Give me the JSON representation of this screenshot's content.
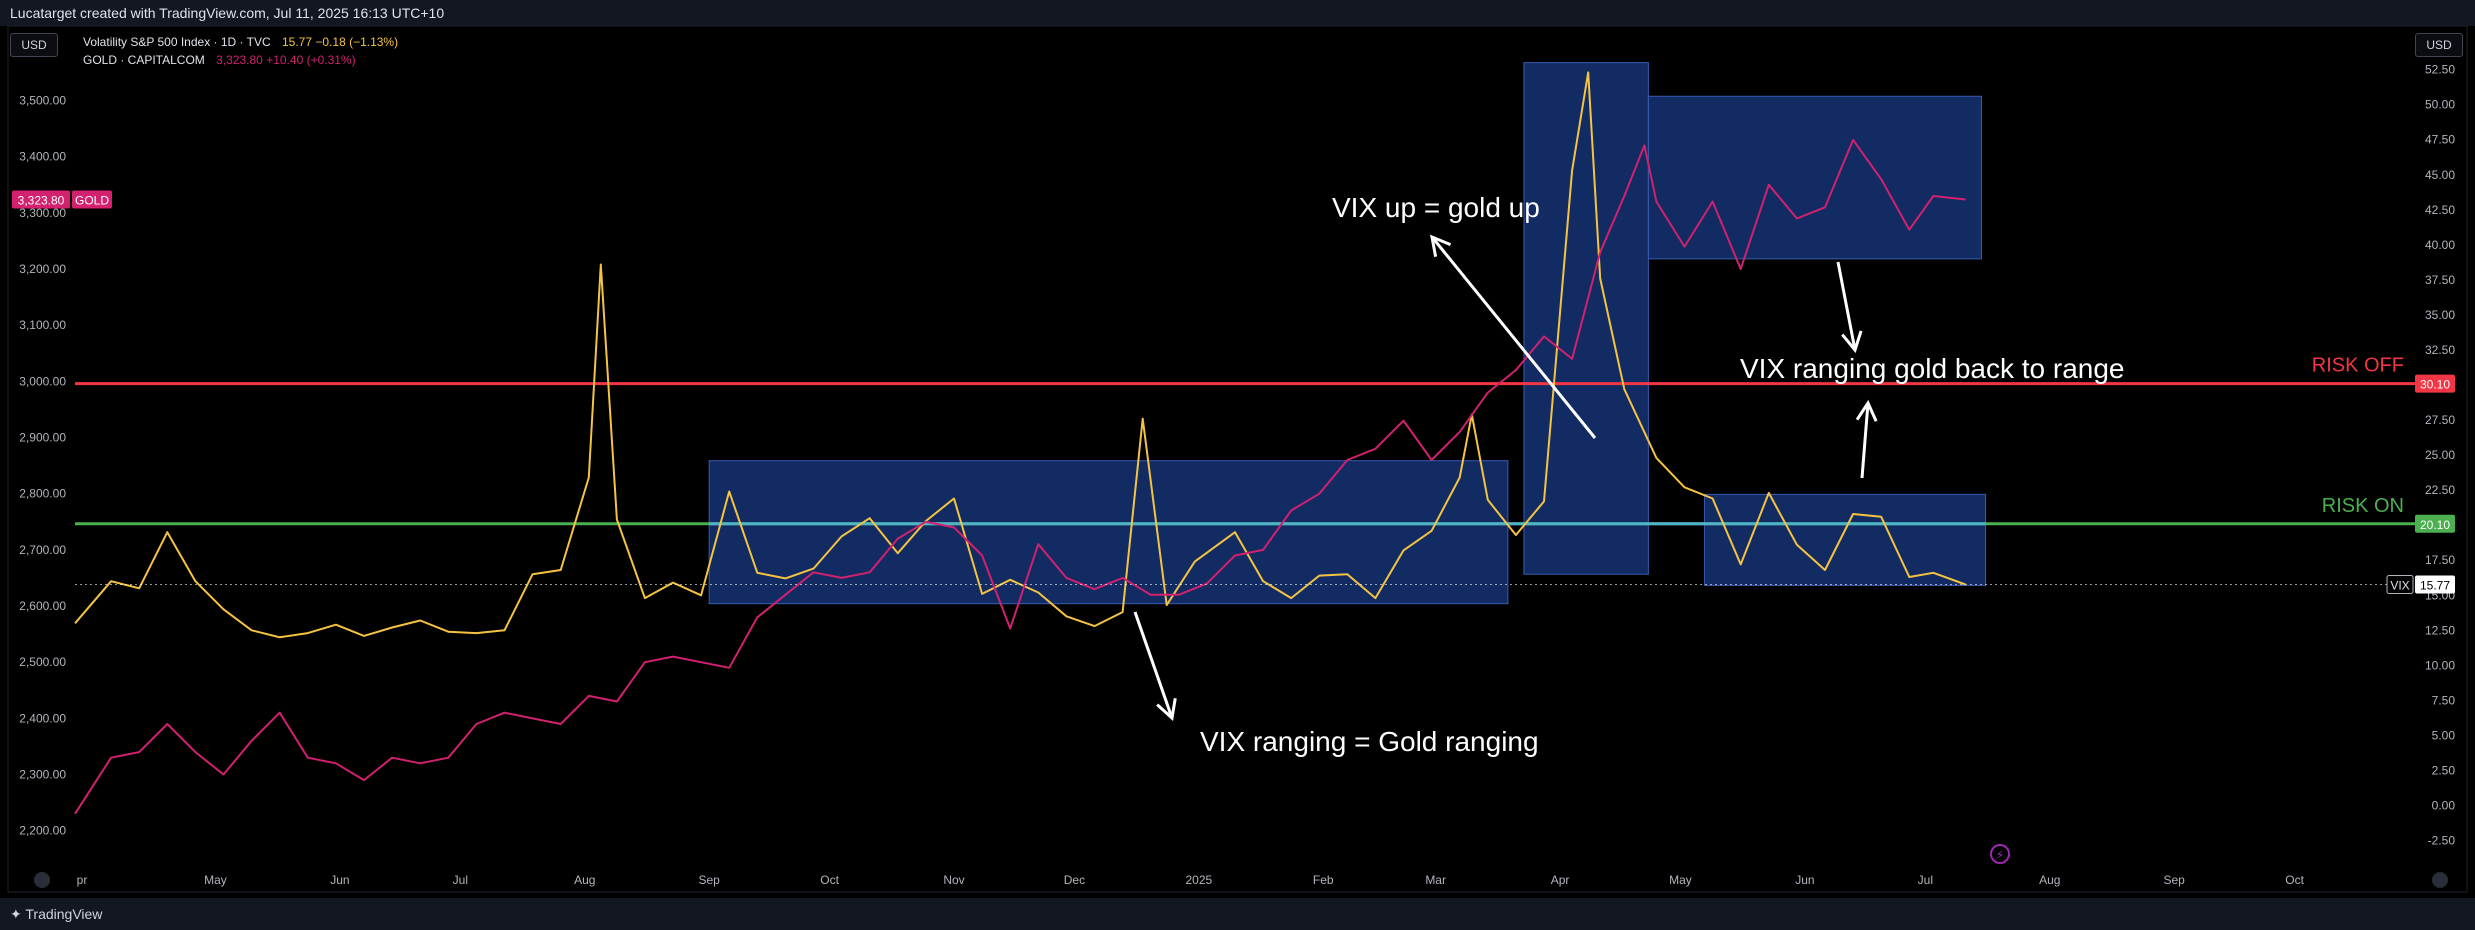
{
  "header": {
    "attribution": "Lucatarget created with TradingView.com, Jul 11, 2025 16:13 UTC+10"
  },
  "footer": {
    "brand": "TradingView"
  },
  "currency_left": "USD",
  "currency_right": "USD",
  "legend": [
    {
      "name": "Volatility S&P 500 Index · 1D · TVC",
      "last": "15.77",
      "change": "−0.18 (−1.13%)",
      "color": "#f5c342"
    },
    {
      "name": "GOLD · CAPITALCOM",
      "last": "3,323.80",
      "change": "+10.40 (+0.31%)",
      "color": "#d1216f"
    }
  ],
  "colors": {
    "vix": "#f5c342",
    "gold": "#d1216f",
    "risk_off": "#f23645",
    "risk_on": "#4caf50",
    "cyan": "#4fb3c9",
    "box_fill": "#14306e",
    "box_stroke": "#3a5bb0"
  },
  "chart_data": {
    "type": "line",
    "x_start": "2024-03-27",
    "x_end": "2025-10-31",
    "x_tick_labels": [
      "pr",
      "May",
      "Jun",
      "Jul",
      "Aug",
      "Sep",
      "Oct",
      "Nov",
      "Dec",
      "2025",
      "Feb",
      "Mar",
      "Apr",
      "May",
      "Jun",
      "Jul",
      "Aug",
      "Sep",
      "Oct"
    ],
    "left_axis": {
      "label": "GOLD",
      "ylim": [
        2130,
        3590
      ],
      "ticks": [
        "3,500.00",
        "3,400.00",
        "3,300.00",
        "3,200.00",
        "3,100.00",
        "3,000.00",
        "2,900.00",
        "2,800.00",
        "2,700.00",
        "2,600.00",
        "2,500.00",
        "2,400.00",
        "2,300.00",
        "2,200.00"
      ]
    },
    "right_axis": {
      "label": "VIX",
      "ylim": [
        -4.6,
        53.9
      ],
      "ticks": [
        "52.50",
        "50.00",
        "47.50",
        "45.00",
        "42.50",
        "40.00",
        "37.50",
        "35.00",
        "32.50",
        "30.00",
        "27.50",
        "25.00",
        "22.50",
        "20.00",
        "17.50",
        "15.00",
        "12.50",
        "10.00",
        "7.50",
        "5.00",
        "2.50",
        "0.00",
        "-2.50"
      ]
    },
    "series": [
      {
        "name": "Volatility S&P 500 Index",
        "axis": "right",
        "color": "#f5c342",
        "points": [
          [
            "2024-03-27",
            13.0
          ],
          [
            "2024-04-05",
            16.0
          ],
          [
            "2024-04-12",
            15.5
          ],
          [
            "2024-04-19",
            19.5
          ],
          [
            "2024-04-26",
            16.0
          ],
          [
            "2024-05-03",
            14.0
          ],
          [
            "2024-05-10",
            12.5
          ],
          [
            "2024-05-17",
            12.0
          ],
          [
            "2024-05-24",
            12.3
          ],
          [
            "2024-05-31",
            12.9
          ],
          [
            "2024-06-07",
            12.1
          ],
          [
            "2024-06-14",
            12.7
          ],
          [
            "2024-06-21",
            13.2
          ],
          [
            "2024-06-28",
            12.4
          ],
          [
            "2024-07-05",
            12.3
          ],
          [
            "2024-07-12",
            12.5
          ],
          [
            "2024-07-19",
            16.5
          ],
          [
            "2024-07-26",
            16.8
          ],
          [
            "2024-08-02",
            23.4
          ],
          [
            "2024-08-05",
            38.6
          ],
          [
            "2024-08-09",
            20.4
          ],
          [
            "2024-08-16",
            14.8
          ],
          [
            "2024-08-23",
            15.9
          ],
          [
            "2024-08-30",
            15.0
          ],
          [
            "2024-09-06",
            22.4
          ],
          [
            "2024-09-13",
            16.6
          ],
          [
            "2024-09-20",
            16.2
          ],
          [
            "2024-09-27",
            16.9
          ],
          [
            "2024-10-04",
            19.2
          ],
          [
            "2024-10-11",
            20.5
          ],
          [
            "2024-10-18",
            18.0
          ],
          [
            "2024-10-25",
            20.3
          ],
          [
            "2024-11-01",
            21.9
          ],
          [
            "2024-11-08",
            15.1
          ],
          [
            "2024-11-15",
            16.1
          ],
          [
            "2024-11-22",
            15.2
          ],
          [
            "2024-11-29",
            13.5
          ],
          [
            "2024-12-06",
            12.8
          ],
          [
            "2024-12-13",
            13.8
          ],
          [
            "2024-12-18",
            27.6
          ],
          [
            "2024-12-24",
            14.3
          ],
          [
            "2024-12-31",
            17.4
          ],
          [
            "2025-01-10",
            19.5
          ],
          [
            "2025-01-17",
            16.0
          ],
          [
            "2025-01-24",
            14.8
          ],
          [
            "2025-01-31",
            16.4
          ],
          [
            "2025-02-07",
            16.5
          ],
          [
            "2025-02-14",
            14.8
          ],
          [
            "2025-02-21",
            18.2
          ],
          [
            "2025-02-28",
            19.6
          ],
          [
            "2025-03-07",
            23.4
          ],
          [
            "2025-03-10",
            27.9
          ],
          [
            "2025-03-14",
            21.8
          ],
          [
            "2025-03-21",
            19.3
          ],
          [
            "2025-03-28",
            21.7
          ],
          [
            "2025-04-04",
            45.3
          ],
          [
            "2025-04-08",
            52.3
          ],
          [
            "2025-04-11",
            37.6
          ],
          [
            "2025-04-17",
            29.7
          ],
          [
            "2025-04-25",
            24.8
          ],
          [
            "2025-05-02",
            22.7
          ],
          [
            "2025-05-09",
            21.9
          ],
          [
            "2025-05-16",
            17.2
          ],
          [
            "2025-05-23",
            22.3
          ],
          [
            "2025-05-30",
            18.6
          ],
          [
            "2025-06-06",
            16.8
          ],
          [
            "2025-06-13",
            20.8
          ],
          [
            "2025-06-20",
            20.6
          ],
          [
            "2025-06-27",
            16.3
          ],
          [
            "2025-07-03",
            16.6
          ],
          [
            "2025-07-11",
            15.77
          ]
        ]
      },
      {
        "name": "GOLD",
        "axis": "left",
        "color": "#d1216f",
        "points": [
          [
            "2024-03-27",
            2230
          ],
          [
            "2024-04-05",
            2330
          ],
          [
            "2024-04-12",
            2340
          ],
          [
            "2024-04-19",
            2390
          ],
          [
            "2024-04-26",
            2340
          ],
          [
            "2024-05-03",
            2300
          ],
          [
            "2024-05-10",
            2360
          ],
          [
            "2024-05-17",
            2410
          ],
          [
            "2024-05-24",
            2330
          ],
          [
            "2024-05-31",
            2320
          ],
          [
            "2024-06-07",
            2290
          ],
          [
            "2024-06-14",
            2330
          ],
          [
            "2024-06-21",
            2320
          ],
          [
            "2024-06-28",
            2330
          ],
          [
            "2024-07-05",
            2390
          ],
          [
            "2024-07-12",
            2410
          ],
          [
            "2024-07-19",
            2400
          ],
          [
            "2024-07-26",
            2390
          ],
          [
            "2024-08-02",
            2440
          ],
          [
            "2024-08-09",
            2430
          ],
          [
            "2024-08-16",
            2500
          ],
          [
            "2024-08-23",
            2510
          ],
          [
            "2024-08-30",
            2500
          ],
          [
            "2024-09-06",
            2490
          ],
          [
            "2024-09-13",
            2580
          ],
          [
            "2024-09-20",
            2620
          ],
          [
            "2024-09-27",
            2660
          ],
          [
            "2024-10-04",
            2650
          ],
          [
            "2024-10-11",
            2660
          ],
          [
            "2024-10-18",
            2720
          ],
          [
            "2024-10-25",
            2750
          ],
          [
            "2024-11-01",
            2740
          ],
          [
            "2024-11-08",
            2690
          ],
          [
            "2024-11-15",
            2560
          ],
          [
            "2024-11-22",
            2710
          ],
          [
            "2024-11-29",
            2650
          ],
          [
            "2024-12-06",
            2630
          ],
          [
            "2024-12-13",
            2650
          ],
          [
            "2024-12-20",
            2620
          ],
          [
            "2024-12-27",
            2620
          ],
          [
            "2025-01-03",
            2640
          ],
          [
            "2025-01-10",
            2690
          ],
          [
            "2025-01-17",
            2700
          ],
          [
            "2025-01-24",
            2770
          ],
          [
            "2025-01-31",
            2800
          ],
          [
            "2025-02-07",
            2860
          ],
          [
            "2025-02-14",
            2880
          ],
          [
            "2025-02-21",
            2930
          ],
          [
            "2025-02-28",
            2860
          ],
          [
            "2025-03-07",
            2910
          ],
          [
            "2025-03-14",
            2980
          ],
          [
            "2025-03-21",
            3020
          ],
          [
            "2025-03-28",
            3080
          ],
          [
            "2025-04-04",
            3040
          ],
          [
            "2025-04-11",
            3230
          ],
          [
            "2025-04-17",
            3330
          ],
          [
            "2025-04-22",
            3420
          ],
          [
            "2025-04-25",
            3320
          ],
          [
            "2025-05-02",
            3240
          ],
          [
            "2025-05-09",
            3320
          ],
          [
            "2025-05-16",
            3200
          ],
          [
            "2025-05-23",
            3350
          ],
          [
            "2025-05-30",
            3290
          ],
          [
            "2025-06-06",
            3310
          ],
          [
            "2025-06-13",
            3430
          ],
          [
            "2025-06-20",
            3360
          ],
          [
            "2025-06-27",
            3270
          ],
          [
            "2025-07-03",
            3330
          ],
          [
            "2025-07-11",
            3323.8
          ]
        ]
      }
    ],
    "hlines": [
      {
        "value": 30.1,
        "axis": "right",
        "label": "RISK OFF",
        "badge": "30.10",
        "color": "#f23645"
      },
      {
        "value": 20.1,
        "axis": "right",
        "label": "RISK ON",
        "badge": "20.10",
        "color": "#4caf50"
      }
    ],
    "last_badges": [
      {
        "series": "GOLD",
        "value": "3,323.80",
        "label": "GOLD"
      },
      {
        "series": "VIX",
        "value": "15.77",
        "label": "VIX"
      }
    ],
    "annotations": [
      {
        "text": "VIX up = gold up"
      },
      {
        "text": "VIX ranging = Gold ranging"
      },
      {
        "text": "VIX ranging gold back to range"
      }
    ]
  }
}
